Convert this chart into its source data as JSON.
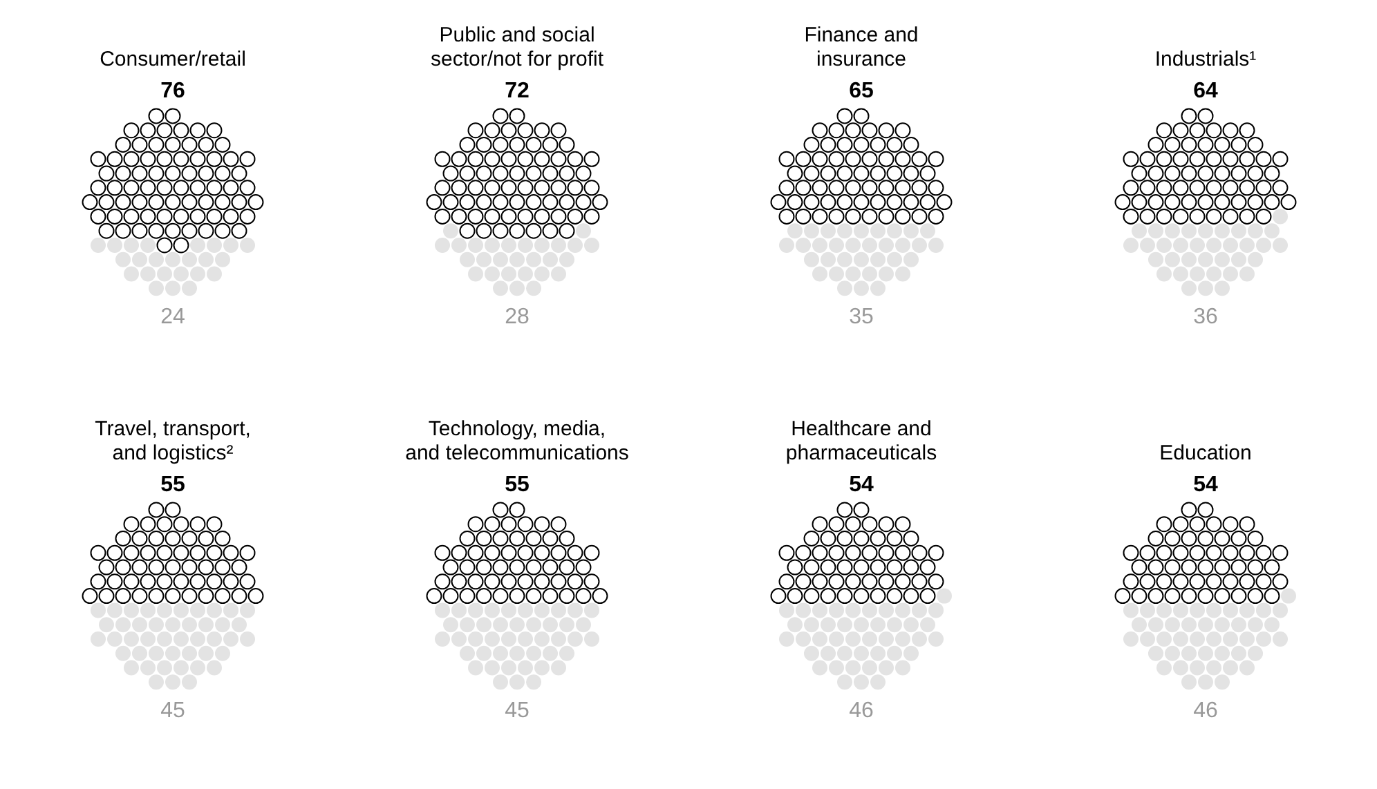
{
  "chart_data": [
    {
      "type": "other",
      "title": "Consumer/retail",
      "values": [
        76,
        24
      ],
      "colors": [
        "#000000",
        "#e3e3e3"
      ],
      "data_labels": true
    },
    {
      "type": "other",
      "title": "Public and social\nsector/not for profit",
      "values": [
        72,
        28
      ],
      "colors": [
        "#000000",
        "#e3e3e3"
      ],
      "data_labels": true
    },
    {
      "type": "other",
      "title": "Finance and\ninsurance",
      "values": [
        65,
        35
      ],
      "colors": [
        "#000000",
        "#e3e3e3"
      ],
      "data_labels": true
    },
    {
      "type": "other",
      "title": "Industrials¹",
      "values": [
        64,
        36
      ],
      "colors": [
        "#000000",
        "#e3e3e3"
      ],
      "data_labels": true
    },
    {
      "type": "other",
      "title": "Travel, transport,\nand logistics²",
      "values": [
        55,
        45
      ],
      "colors": [
        "#000000",
        "#e3e3e3"
      ],
      "data_labels": true
    },
    {
      "type": "other",
      "title": "Technology, media,\nand telecommunications",
      "values": [
        55,
        45
      ],
      "colors": [
        "#000000",
        "#e3e3e3"
      ],
      "data_labels": true
    },
    {
      "type": "other",
      "title": "Healthcare and\npharmaceuticals",
      "values": [
        54,
        46
      ],
      "colors": [
        "#000000",
        "#e3e3e3"
      ],
      "data_labels": true
    },
    {
      "type": "other",
      "title": "Education",
      "values": [
        54,
        46
      ],
      "colors": [
        "#000000",
        "#e3e3e3"
      ],
      "data_labels": true
    }
  ]
}
